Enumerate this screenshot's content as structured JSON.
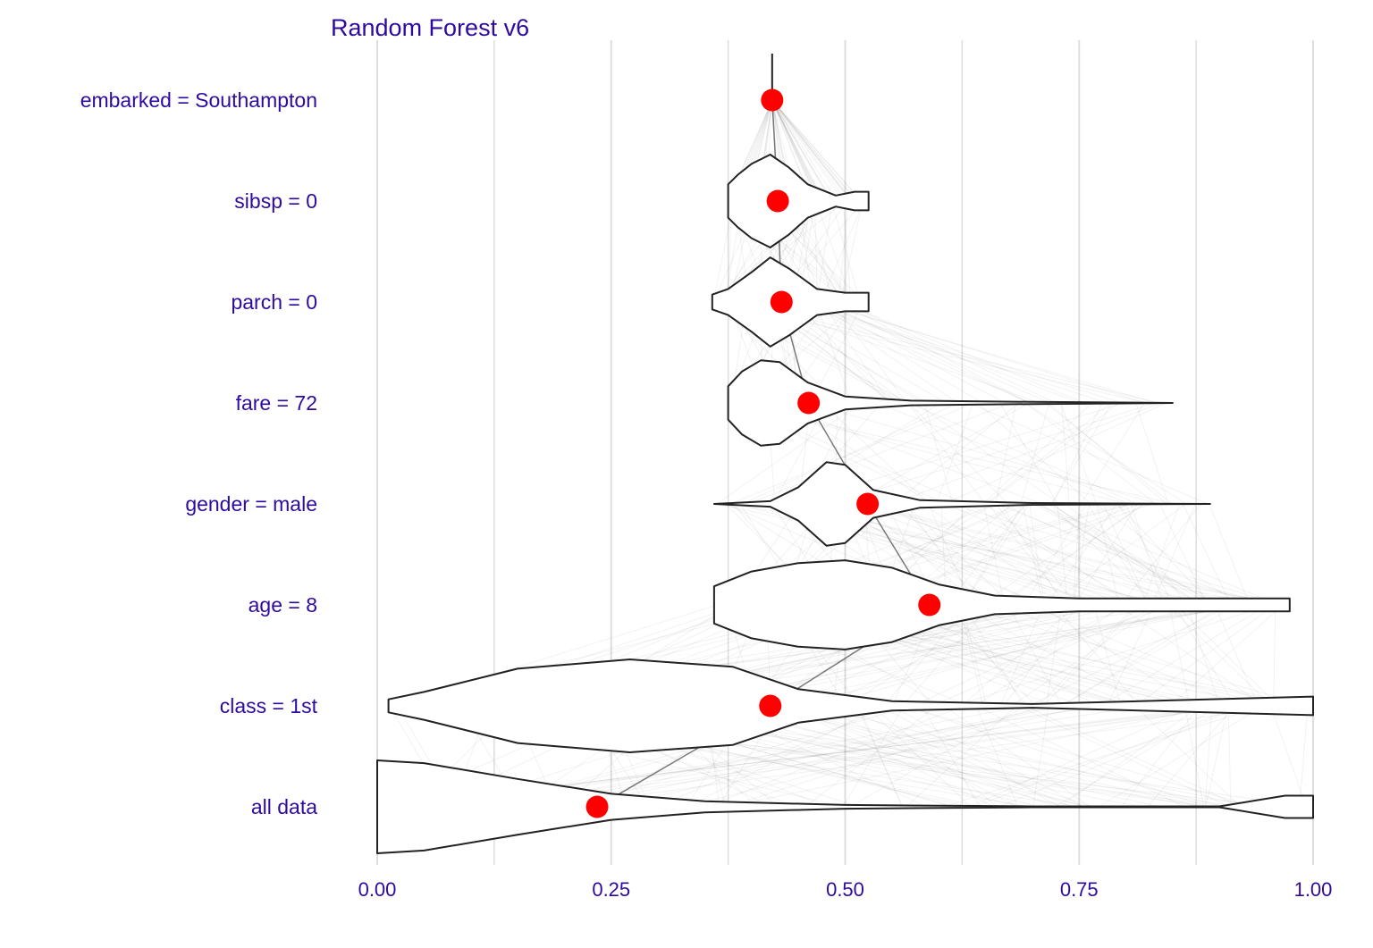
{
  "chart_data": {
    "type": "violin",
    "title": "Random Forest v6",
    "xlabel": "",
    "ylabel": "",
    "xlim": [
      0,
      1
    ],
    "x_ticks": [
      0.0,
      0.25,
      0.5,
      0.75,
      1.0
    ],
    "x_tick_labels": [
      "0.00",
      "0.25",
      "0.50",
      "0.75",
      "1.00"
    ],
    "grid": "vertical",
    "categories": [
      "embarked = Southampton",
      "sibsp = 0",
      "parch = 0",
      "fare = 72",
      "gender = male",
      "age = 8",
      "class = 1st",
      "all data"
    ],
    "point_values": [
      0.422,
      0.428,
      0.432,
      0.461,
      0.524,
      0.59,
      0.42,
      0.235
    ],
    "distributions": [
      {
        "label": "embarked = Southampton",
        "min": 0.422,
        "max": 0.422,
        "density": [
          [
            0.422,
            0.0
          ]
        ]
      },
      {
        "label": "sibsp = 0",
        "min": 0.375,
        "max": 0.525,
        "density": [
          [
            0.375,
            0.18
          ],
          [
            0.385,
            0.28
          ],
          [
            0.4,
            0.4
          ],
          [
            0.42,
            0.5
          ],
          [
            0.44,
            0.36
          ],
          [
            0.46,
            0.18
          ],
          [
            0.49,
            0.06
          ],
          [
            0.51,
            0.1
          ],
          [
            0.525,
            0.1
          ]
        ]
      },
      {
        "label": "parch = 0",
        "min": 0.358,
        "max": 0.525,
        "density": [
          [
            0.358,
            0.08
          ],
          [
            0.375,
            0.14
          ],
          [
            0.4,
            0.32
          ],
          [
            0.42,
            0.48
          ],
          [
            0.44,
            0.36
          ],
          [
            0.47,
            0.14
          ],
          [
            0.5,
            0.1
          ],
          [
            0.525,
            0.1
          ]
        ]
      },
      {
        "label": "fare = 72",
        "min": 0.375,
        "max": 0.85,
        "density": [
          [
            0.375,
            0.18
          ],
          [
            0.39,
            0.34
          ],
          [
            0.41,
            0.46
          ],
          [
            0.43,
            0.44
          ],
          [
            0.46,
            0.22
          ],
          [
            0.5,
            0.07
          ],
          [
            0.57,
            0.025
          ],
          [
            0.7,
            0.012
          ],
          [
            0.85,
            0.0
          ]
        ]
      },
      {
        "label": "gender = male",
        "min": 0.36,
        "max": 0.89,
        "density": [
          [
            0.36,
            0.0
          ],
          [
            0.42,
            0.03
          ],
          [
            0.45,
            0.18
          ],
          [
            0.48,
            0.45
          ],
          [
            0.5,
            0.42
          ],
          [
            0.53,
            0.15
          ],
          [
            0.58,
            0.04
          ],
          [
            0.7,
            0.01
          ],
          [
            0.89,
            0.0
          ]
        ]
      },
      {
        "label": "age = 8",
        "min": 0.36,
        "max": 0.975,
        "density": [
          [
            0.36,
            0.2
          ],
          [
            0.4,
            0.36
          ],
          [
            0.45,
            0.45
          ],
          [
            0.5,
            0.48
          ],
          [
            0.55,
            0.4
          ],
          [
            0.6,
            0.22
          ],
          [
            0.66,
            0.1
          ],
          [
            0.75,
            0.07
          ],
          [
            0.9,
            0.07
          ],
          [
            0.975,
            0.07
          ]
        ]
      },
      {
        "label": "class = 1st",
        "min": 0.012,
        "max": 1.0,
        "density": [
          [
            0.012,
            0.07
          ],
          [
            0.05,
            0.15
          ],
          [
            0.15,
            0.4
          ],
          [
            0.27,
            0.5
          ],
          [
            0.38,
            0.42
          ],
          [
            0.45,
            0.18
          ],
          [
            0.55,
            0.05
          ],
          [
            0.7,
            0.02
          ],
          [
            1.0,
            0.1
          ]
        ]
      },
      {
        "label": "all data",
        "min": 0.0,
        "max": 1.0,
        "density": [
          [
            0.0,
            0.5
          ],
          [
            0.05,
            0.47
          ],
          [
            0.15,
            0.3
          ],
          [
            0.25,
            0.14
          ],
          [
            0.35,
            0.06
          ],
          [
            0.5,
            0.02
          ],
          [
            0.7,
            0.005
          ],
          [
            0.9,
            0.005
          ],
          [
            0.97,
            0.12
          ],
          [
            1.0,
            0.12
          ]
        ]
      }
    ],
    "point_color": "#ff0000",
    "label_color": "#2e0b9e",
    "violin_fill": "#ffffff",
    "violin_stroke": "#222222",
    "grid_color": "#dddddd",
    "path_line_color": "#000000"
  }
}
